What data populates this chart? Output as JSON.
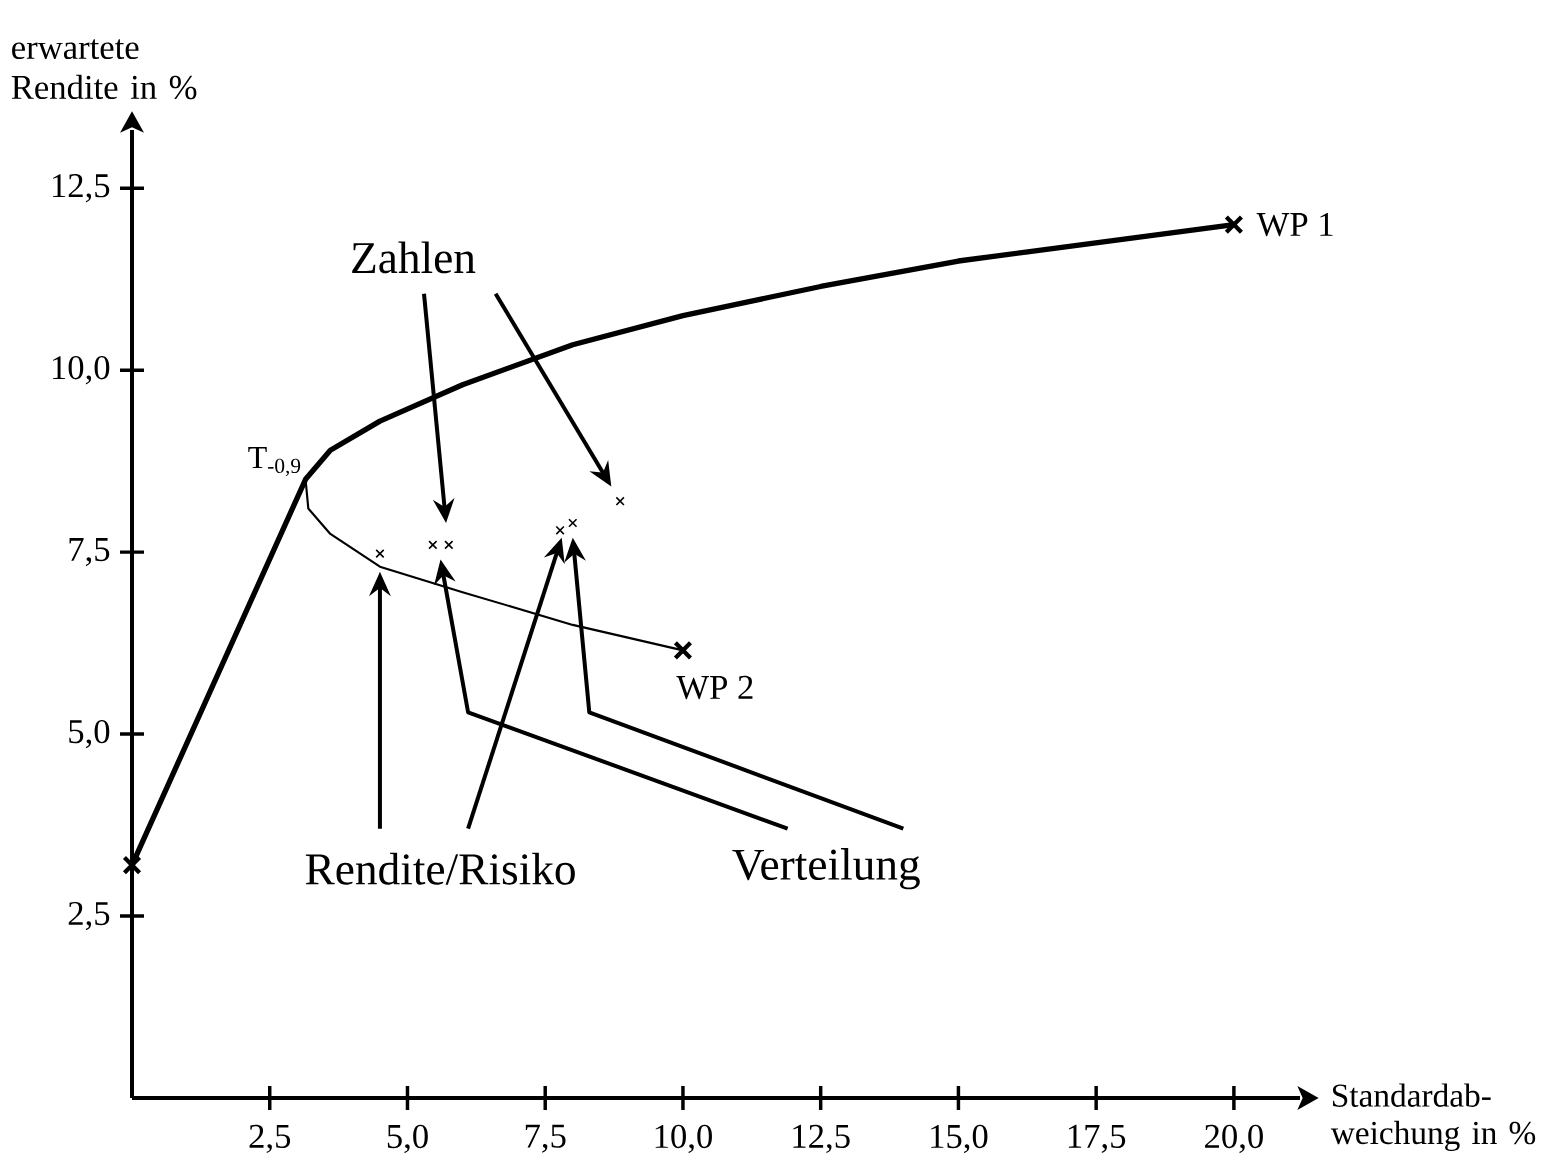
{
  "chart_data": {
    "type": "line",
    "xlabel": "Standardab-weichung in %",
    "ylabel": "erwartete Rendite in %",
    "xlim": [
      0,
      21.2
    ],
    "ylim": [
      0,
      13.3
    ],
    "xticks": [
      {
        "value": 2.5,
        "label": "2,5"
      },
      {
        "value": 5,
        "label": "5,0"
      },
      {
        "value": 7.5,
        "label": "7,5"
      },
      {
        "value": 10,
        "label": "10,0"
      },
      {
        "value": 12.5,
        "label": "12,5"
      },
      {
        "value": 15,
        "label": "15,0"
      },
      {
        "value": 17.5,
        "label": "17,5"
      },
      {
        "value": 20,
        "label": "20,0"
      }
    ],
    "yticks": [
      {
        "value": 2.5,
        "label": "2,5"
      },
      {
        "value": 5,
        "label": "5,0"
      },
      {
        "value": 7.5,
        "label": "7,5"
      },
      {
        "value": 10,
        "label": "10,0"
      },
      {
        "value": 12.5,
        "label": "12,5"
      }
    ],
    "marker": "cross",
    "line_style": "solid",
    "series": [
      {
        "marker": "none",
        "color": "#000000",
        "x": [
          0,
          3.15,
          3.6,
          4.5,
          6,
          8,
          10,
          12.5,
          15,
          17.5,
          20
        ],
        "values": [
          3.2,
          8.5,
          8.9,
          9.3,
          9.8,
          10.35,
          10.75,
          11.15,
          11.5,
          11.75,
          12.0
        ]
      },
      {
        "marker": "none",
        "color": "#000000",
        "x": [
          3.15,
          3.2,
          3.6,
          4.5,
          6,
          8,
          10
        ],
        "values": [
          8.5,
          8.1,
          7.75,
          7.3,
          6.95,
          6.5,
          6.15
        ]
      },
      {
        "type": "scatter",
        "color": "#000000",
        "x": [
          0,
          20,
          10
        ],
        "values": [
          3.2,
          12.0,
          6.15
        ]
      },
      {
        "type": "scatter",
        "color": "#000000",
        "x": [
          4.5,
          5.46,
          5.75,
          7.77,
          8.0,
          8.86
        ],
        "values": [
          7.48,
          7.6,
          7.6,
          7.8,
          7.9,
          8.2
        ]
      }
    ],
    "annotations": [
      {
        "text": "T$_{-0,9}$",
        "x": 3.15,
        "y": 8.5
      },
      {
        "text": "WP 1",
        "x": 20,
        "y": 12.0
      },
      {
        "text": "WP 2",
        "x": 10,
        "y": 6.15
      },
      "Zahlen",
      "Rendite/Risiko",
      "Verteilung"
    ]
  }
}
